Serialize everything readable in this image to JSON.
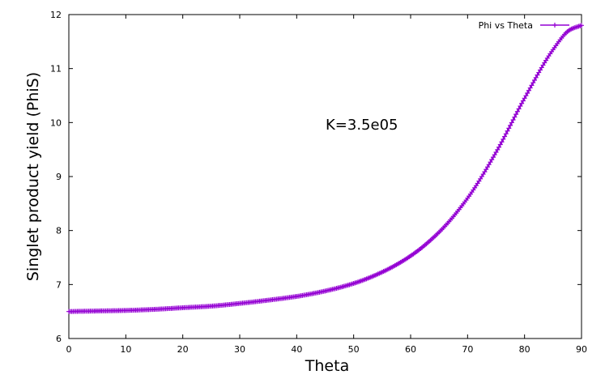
{
  "chart_data": {
    "type": "line",
    "title": "",
    "xlabel": "Theta",
    "ylabel": "Singlet product yield (PhiS)",
    "xlim": [
      0,
      90
    ],
    "ylim": [
      6,
      12
    ],
    "xticks": [
      "0",
      "10",
      "20",
      "30",
      "40",
      "50",
      "60",
      "70",
      "80",
      "90"
    ],
    "yticks": [
      "6",
      "7",
      "8",
      "9",
      "10",
      "11",
      "12"
    ],
    "grid": false,
    "legend_position": "top-right",
    "annotation": "K=3.5e05",
    "series": [
      {
        "name": "Phi vs Theta",
        "color": "#9400d3",
        "marker": "plus",
        "x": [
          0,
          5,
          10,
          15,
          20,
          25,
          30,
          35,
          40,
          45,
          50,
          55,
          60,
          65,
          70,
          75,
          80,
          85,
          88,
          90
        ],
        "y": [
          6.5,
          6.51,
          6.52,
          6.54,
          6.57,
          6.6,
          6.65,
          6.71,
          6.78,
          6.88,
          7.02,
          7.23,
          7.53,
          7.97,
          8.6,
          9.45,
          10.45,
          11.35,
          11.72,
          11.8
        ]
      }
    ]
  }
}
